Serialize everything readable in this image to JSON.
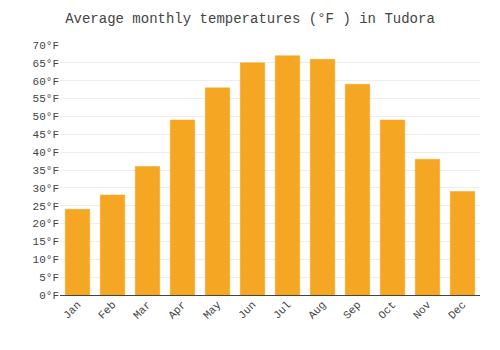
{
  "chart_data": {
    "type": "bar",
    "title": "Average monthly temperatures (°F ) in Tudora",
    "categories": [
      "Jan",
      "Feb",
      "Mar",
      "Apr",
      "May",
      "Jun",
      "Jul",
      "Aug",
      "Sep",
      "Oct",
      "Nov",
      "Dec"
    ],
    "values": [
      24,
      28,
      36,
      49,
      58,
      65,
      67,
      66,
      59,
      49,
      38,
      29
    ],
    "color": "#F5A623",
    "ylim": [
      0,
      70
    ],
    "yticks": [
      {
        "value": 0,
        "label": "0°F"
      },
      {
        "value": 5,
        "label": "5°F"
      },
      {
        "value": 10,
        "label": "10°F"
      },
      {
        "value": 15,
        "label": "15°F"
      },
      {
        "value": 20,
        "label": "20°F"
      },
      {
        "value": 25,
        "label": "25°F"
      },
      {
        "value": 30,
        "label": "30°F"
      },
      {
        "value": 35,
        "label": "35°F"
      },
      {
        "value": 40,
        "label": "40°F"
      },
      {
        "value": 45,
        "label": "45°F"
      },
      {
        "value": 50,
        "label": "50°F"
      },
      {
        "value": 55,
        "label": "55°F"
      },
      {
        "value": 60,
        "label": "60°F"
      },
      {
        "value": 65,
        "label": "65°F"
      },
      {
        "value": 70,
        "label": "70°F"
      }
    ],
    "grid": true
  }
}
